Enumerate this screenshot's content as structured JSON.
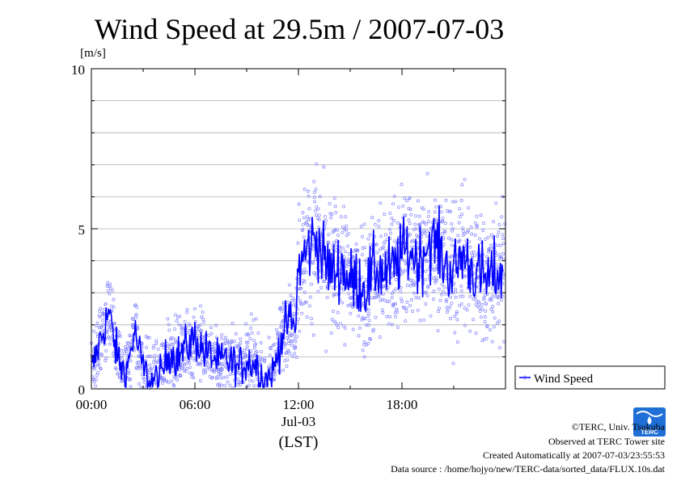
{
  "chart_data": {
    "type": "line",
    "title": "Wind Speed at 29.5m / 2007-07-03",
    "ylabel": "[m/s]",
    "xlabel": "(LST)",
    "date_label": "Jul-03",
    "x_ticks": [
      "00:00",
      "06:00",
      "12:00",
      "18:00"
    ],
    "y_ticks": [
      "0",
      "5",
      "10"
    ],
    "ylim": [
      0,
      10
    ],
    "xlim_hours": [
      0,
      23.99
    ],
    "grid": true,
    "legend_position": "bottom-right",
    "series": [
      {
        "name": "Wind Speed",
        "color": "#0000ff",
        "x_hours": [
          0.0,
          0.5,
          1.0,
          1.5,
          2.0,
          2.5,
          3.0,
          3.5,
          4.0,
          4.5,
          5.0,
          5.5,
          6.0,
          6.5,
          7.0,
          7.5,
          8.0,
          8.5,
          9.0,
          9.5,
          10.0,
          10.5,
          11.0,
          11.5,
          11.8,
          12.0,
          12.5,
          13.0,
          13.5,
          14.0,
          14.5,
          15.0,
          15.5,
          16.0,
          16.5,
          17.0,
          17.5,
          18.0,
          18.5,
          19.0,
          19.5,
          20.0,
          20.5,
          21.0,
          21.5,
          22.0,
          22.5,
          23.0,
          23.5,
          23.9
        ],
        "values": [
          0.5,
          1.5,
          2.4,
          1.0,
          0.4,
          1.8,
          0.6,
          0.2,
          0.3,
          1.2,
          1.0,
          1.3,
          1.6,
          1.2,
          1.0,
          0.8,
          0.9,
          0.6,
          0.9,
          0.8,
          0.3,
          0.4,
          1.6,
          2.2,
          1.8,
          3.8,
          4.3,
          4.8,
          4.0,
          3.6,
          3.9,
          3.3,
          3.4,
          3.2,
          3.8,
          3.6,
          3.7,
          4.2,
          4.3,
          4.0,
          4.6,
          4.5,
          3.9,
          3.6,
          4.2,
          3.8,
          3.5,
          3.4,
          3.6,
          3.7
        ]
      }
    ],
    "scatter_color": "#8080ff"
  },
  "footer": {
    "copyright": "©TERC, Univ. Tsukuba",
    "observed": "Observed at TERC Tower site",
    "created": "Created Automatically at 2007-07-03/23:55:53",
    "source": "Data source : /home/hojyo/new/TERC-data/sorted_data/FLUX.10s.dat"
  },
  "logo": {
    "text": "TERC",
    "color": "#1f6fd6"
  }
}
